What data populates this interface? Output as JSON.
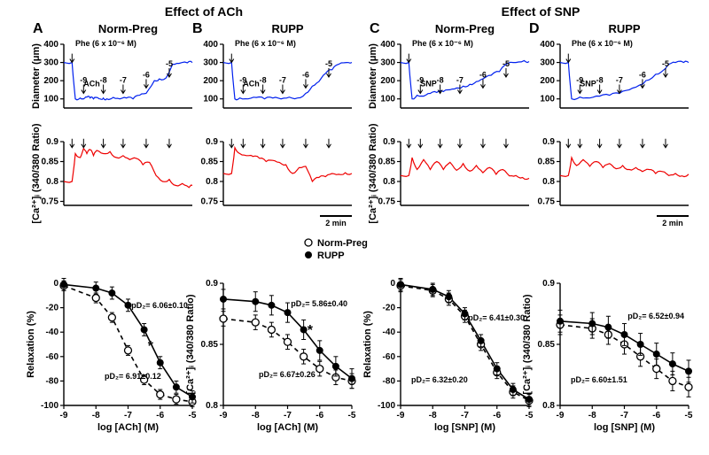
{
  "effectLeft": "Effect of ACh",
  "effectRight": "Effect of SNP",
  "panels": {
    "A": {
      "title": "Norm-Preg",
      "label": "ACh",
      "agonist": "Phe (6 x 10⁻⁶ M)"
    },
    "B": {
      "title": "RUPP",
      "label": "ACh",
      "agonist": "Phe (6 x 10⁻⁶ M)"
    },
    "C": {
      "title": "Norm-Preg",
      "label": "SNP",
      "agonist": "Phe (6 x 10⁻⁶ M)"
    },
    "D": {
      "title": "RUPP",
      "label": "SNP",
      "agonist": "Phe (6 x 10⁻⁶ M)"
    }
  },
  "legend": {
    "open": "Norm-Preg",
    "closed": "RUPP"
  },
  "scaleBar": "2 min",
  "doses": [
    "-9",
    "-8",
    "-7",
    "-6",
    "-5"
  ],
  "colors": {
    "traceBlue": "#0020ee",
    "traceRed": "#ee0000",
    "axis": "#000000",
    "fill": "#ffffff",
    "text": "#000000"
  },
  "fonts": {
    "header": 14,
    "panelLetter": 16,
    "title": 13,
    "axisLabel": 11,
    "axisTick": 10,
    "small": 9,
    "pd2": 9
  },
  "topAxis": {
    "ylabel": "Diameter (μm)",
    "yticks": [
      100,
      200,
      300,
      400
    ],
    "ymin": 50,
    "ymax": 400
  },
  "midAxis": {
    "ylabel": "[Ca²⁺]ᵢ (340/380 Ratio)",
    "yticks": [
      0.75,
      0.8,
      0.85,
      0.9
    ],
    "ymin": 0.74,
    "ymax": 0.9
  },
  "bottomX": {
    "ticks": [
      -9,
      -8,
      -7,
      -6,
      -5
    ]
  },
  "traces": {
    "topBlue": {
      "A": [
        [
          0,
          300
        ],
        [
          5,
          300
        ],
        [
          7,
          100
        ],
        [
          10,
          105
        ],
        [
          12,
          100
        ],
        [
          14,
          110
        ],
        [
          16,
          105
        ],
        [
          18,
          100
        ],
        [
          20,
          108
        ],
        [
          22,
          100
        ],
        [
          24,
          105
        ],
        [
          26,
          100
        ],
        [
          30,
          108
        ],
        [
          34,
          100
        ],
        [
          38,
          105
        ],
        [
          42,
          100
        ],
        [
          46,
          120
        ],
        [
          50,
          130
        ],
        [
          55,
          200
        ],
        [
          58,
          210
        ],
        [
          62,
          215
        ],
        [
          66,
          290
        ],
        [
          70,
          295
        ],
        [
          75,
          298
        ],
        [
          78,
          300
        ]
      ],
      "B": [
        [
          0,
          300
        ],
        [
          5,
          300
        ],
        [
          7,
          100
        ],
        [
          10,
          105
        ],
        [
          15,
          100
        ],
        [
          20,
          108
        ],
        [
          25,
          100
        ],
        [
          30,
          105
        ],
        [
          35,
          100
        ],
        [
          40,
          110
        ],
        [
          45,
          105
        ],
        [
          50,
          130
        ],
        [
          54,
          170
        ],
        [
          58,
          195
        ],
        [
          62,
          240
        ],
        [
          66,
          260
        ],
        [
          70,
          290
        ],
        [
          75,
          300
        ],
        [
          78,
          300
        ]
      ],
      "C": [
        [
          0,
          300
        ],
        [
          5,
          300
        ],
        [
          7,
          100
        ],
        [
          10,
          120
        ],
        [
          14,
          115
        ],
        [
          18,
          130
        ],
        [
          22,
          135
        ],
        [
          26,
          140
        ],
        [
          30,
          150
        ],
        [
          34,
          160
        ],
        [
          38,
          170
        ],
        [
          42,
          180
        ],
        [
          46,
          195
        ],
        [
          50,
          210
        ],
        [
          55,
          230
        ],
        [
          60,
          250
        ],
        [
          65,
          295
        ],
        [
          70,
          300
        ],
        [
          75,
          310
        ],
        [
          78,
          305
        ]
      ],
      "D": [
        [
          0,
          300
        ],
        [
          5,
          300
        ],
        [
          7,
          100
        ],
        [
          12,
          110
        ],
        [
          18,
          105
        ],
        [
          24,
          115
        ],
        [
          30,
          120
        ],
        [
          36,
          130
        ],
        [
          42,
          150
        ],
        [
          48,
          175
        ],
        [
          52,
          200
        ],
        [
          58,
          235
        ],
        [
          63,
          260
        ],
        [
          66,
          290
        ],
        [
          70,
          300
        ],
        [
          75,
          300
        ],
        [
          78,
          300
        ]
      ]
    },
    "midRed": {
      "A": [
        [
          0,
          0.8
        ],
        [
          5,
          0.8
        ],
        [
          7,
          0.87
        ],
        [
          10,
          0.86
        ],
        [
          12,
          0.883
        ],
        [
          14,
          0.87
        ],
        [
          16,
          0.88
        ],
        [
          18,
          0.865
        ],
        [
          20,
          0.878
        ],
        [
          24,
          0.87
        ],
        [
          28,
          0.875
        ],
        [
          32,
          0.86
        ],
        [
          36,
          0.865
        ],
        [
          40,
          0.855
        ],
        [
          44,
          0.858
        ],
        [
          48,
          0.842
        ],
        [
          52,
          0.848
        ],
        [
          56,
          0.815
        ],
        [
          60,
          0.8
        ],
        [
          64,
          0.805
        ],
        [
          68,
          0.79
        ],
        [
          72,
          0.795
        ],
        [
          76,
          0.785
        ],
        [
          78,
          0.79
        ]
      ],
      "B": [
        [
          0,
          0.82
        ],
        [
          5,
          0.82
        ],
        [
          7,
          0.885
        ],
        [
          10,
          0.87
        ],
        [
          14,
          0.865
        ],
        [
          18,
          0.863
        ],
        [
          22,
          0.858
        ],
        [
          26,
          0.85
        ],
        [
          30,
          0.853
        ],
        [
          34,
          0.848
        ],
        [
          38,
          0.842
        ],
        [
          42,
          0.82
        ],
        [
          46,
          0.835
        ],
        [
          50,
          0.838
        ],
        [
          54,
          0.8
        ],
        [
          58,
          0.81
        ],
        [
          62,
          0.812
        ],
        [
          66,
          0.82
        ],
        [
          70,
          0.818
        ],
        [
          74,
          0.822
        ],
        [
          78,
          0.82
        ]
      ],
      "C": [
        [
          0,
          0.815
        ],
        [
          5,
          0.815
        ],
        [
          7,
          0.86
        ],
        [
          10,
          0.83
        ],
        [
          14,
          0.855
        ],
        [
          18,
          0.83
        ],
        [
          22,
          0.85
        ],
        [
          26,
          0.83
        ],
        [
          30,
          0.848
        ],
        [
          34,
          0.828
        ],
        [
          38,
          0.845
        ],
        [
          42,
          0.826
        ],
        [
          46,
          0.84
        ],
        [
          50,
          0.822
        ],
        [
          54,
          0.835
        ],
        [
          58,
          0.818
        ],
        [
          62,
          0.83
        ],
        [
          66,
          0.814
        ],
        [
          70,
          0.815
        ],
        [
          74,
          0.81
        ],
        [
          78,
          0.808
        ]
      ],
      "D": [
        [
          0,
          0.815
        ],
        [
          5,
          0.815
        ],
        [
          7,
          0.86
        ],
        [
          10,
          0.84
        ],
        [
          14,
          0.855
        ],
        [
          18,
          0.838
        ],
        [
          22,
          0.85
        ],
        [
          26,
          0.835
        ],
        [
          30,
          0.845
        ],
        [
          34,
          0.832
        ],
        [
          38,
          0.84
        ],
        [
          42,
          0.83
        ],
        [
          46,
          0.835
        ],
        [
          50,
          0.825
        ],
        [
          54,
          0.83
        ],
        [
          58,
          0.82
        ],
        [
          62,
          0.825
        ],
        [
          66,
          0.815
        ],
        [
          70,
          0.82
        ],
        [
          74,
          0.814
        ],
        [
          78,
          0.818
        ]
      ]
    }
  },
  "bottomPlots": {
    "P1": {
      "ylabel": "Relaxation (%)",
      "ymin": -100,
      "ymax": 0,
      "yticks": [
        -100,
        -80,
        -60,
        -40,
        -20,
        0
      ],
      "xlabel": "log [ACh] (M)",
      "open": [
        [
          -9,
          -2
        ],
        [
          -8,
          -12
        ],
        [
          -7.5,
          -28
        ],
        [
          -7,
          -55
        ],
        [
          -6.5,
          -79
        ],
        [
          -6,
          -91
        ],
        [
          -5.5,
          -95
        ],
        [
          -5,
          -97
        ]
      ],
      "closed": [
        [
          -9,
          -1
        ],
        [
          -8,
          -4
        ],
        [
          -7.5,
          -8
        ],
        [
          -7,
          -18
        ],
        [
          -6.5,
          -38
        ],
        [
          -6,
          -65
        ],
        [
          -5.5,
          -85
        ],
        [
          -5,
          -93
        ]
      ],
      "err": {
        "open": 4,
        "closed": 5
      },
      "pd2open": "pD₂= 6.91±0.12",
      "pd2closed": "pD₂= 6.06±0.10",
      "sig": true,
      "sigAt": [
        -6.3,
        -55
      ]
    },
    "P2": {
      "ylabel": "[Ca²⁺]ᵢ (340/380 Ratio)",
      "ymin": 0.8,
      "ymax": 0.9,
      "yticks": [
        0.8,
        0.85,
        0.9
      ],
      "xlabel": "log [ACh] (M)",
      "open": [
        [
          -9,
          0.871
        ],
        [
          -8,
          0.868
        ],
        [
          -7.5,
          0.862
        ],
        [
          -7,
          0.852
        ],
        [
          -6.5,
          0.84
        ],
        [
          -6,
          0.83
        ],
        [
          -5.5,
          0.823
        ],
        [
          -5,
          0.82
        ]
      ],
      "closed": [
        [
          -9,
          0.887
        ],
        [
          -8,
          0.885
        ],
        [
          -7.5,
          0.882
        ],
        [
          -7,
          0.876
        ],
        [
          -6.5,
          0.862
        ],
        [
          -6,
          0.845
        ],
        [
          -5.5,
          0.832
        ],
        [
          -5,
          0.822
        ]
      ],
      "err": {
        "open": 0.006,
        "closed": 0.008
      },
      "pd2open": "pD₂= 6.67±0.26",
      "pd2closed": "pD₂= 5.86±0.40",
      "sig": true,
      "sigAt": [
        -6.3,
        0.858
      ]
    },
    "P3": {
      "ylabel": "Relaxation (%)",
      "ymin": -100,
      "ymax": 0,
      "yticks": [
        -100,
        -80,
        -60,
        -40,
        -20,
        0
      ],
      "xlabel": "log [SNP] (M)",
      "open": [
        [
          -9,
          -2
        ],
        [
          -8,
          -6
        ],
        [
          -7.5,
          -13
        ],
        [
          -7,
          -27
        ],
        [
          -6.5,
          -50
        ],
        [
          -6,
          -73
        ],
        [
          -5.5,
          -89
        ],
        [
          -5,
          -96
        ]
      ],
      "closed": [
        [
          -9,
          -1
        ],
        [
          -8,
          -5
        ],
        [
          -7.5,
          -11
        ],
        [
          -7,
          -25
        ],
        [
          -6.5,
          -47
        ],
        [
          -6,
          -70
        ],
        [
          -5.5,
          -87
        ],
        [
          -5,
          -95
        ]
      ],
      "err": {
        "open": 5,
        "closed": 5
      },
      "pd2open": "pD₂= 6.32±0.20",
      "pd2closed": "pD₂= 6.41±0.30",
      "sig": false
    },
    "P4": {
      "ylabel": "[Ca²⁺]ᵢ (340/380 Ratio)",
      "ymin": 0.8,
      "ymax": 0.9,
      "yticks": [
        0.8,
        0.85,
        0.9
      ],
      "xlabel": "log [SNP] (M)",
      "open": [
        [
          -9,
          0.866
        ],
        [
          -8,
          0.863
        ],
        [
          -7.5,
          0.858
        ],
        [
          -7,
          0.85
        ],
        [
          -6.5,
          0.84
        ],
        [
          -6,
          0.83
        ],
        [
          -5.5,
          0.82
        ],
        [
          -5,
          0.815
        ]
      ],
      "closed": [
        [
          -9,
          0.869
        ],
        [
          -8,
          0.867
        ],
        [
          -7.5,
          0.864
        ],
        [
          -7,
          0.858
        ],
        [
          -6.5,
          0.85
        ],
        [
          -6,
          0.842
        ],
        [
          -5.5,
          0.834
        ],
        [
          -5,
          0.828
        ]
      ],
      "err": {
        "open": 0.008,
        "closed": 0.009
      },
      "pd2open": "pD₂= 6.60±1.51",
      "pd2closed": "pD₂= 6.52±0.94",
      "sig": false
    }
  }
}
